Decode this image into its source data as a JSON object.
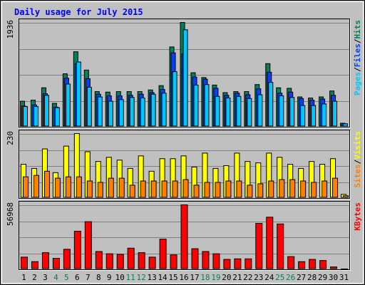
{
  "chart_data": {
    "type": "bar",
    "title": "Daily usage for July 2015",
    "categories": [
      "1",
      "2",
      "3",
      "4",
      "5",
      "6",
      "7",
      "8",
      "9",
      "10",
      "11",
      "12",
      "13",
      "14",
      "15",
      "16",
      "17",
      "18",
      "19",
      "20",
      "21",
      "22",
      "23",
      "24",
      "25",
      "26",
      "27",
      "28",
      "29",
      "30",
      "31"
    ],
    "weekend_days": [
      4,
      5,
      11,
      12,
      18,
      19,
      25,
      26
    ],
    "colors": {
      "background": "#c0c0c0",
      "title": "#0000ff",
      "hits": "#00805c",
      "files": "#0040ff",
      "pages": "#00c8ff",
      "visits": "#ffff00",
      "sites": "#ff8000",
      "kbytes": "#ff0000",
      "weekend_label": "#00805c"
    },
    "panels": [
      {
        "id": "hits",
        "ymax_label": "1936",
        "ymax": 1936,
        "legend": [
          {
            "name": "Pages",
            "color": "#00c8ff"
          },
          {
            "name": "/",
            "color": "#000000"
          },
          {
            "name": "Files",
            "color": "#0040ff"
          },
          {
            "name": "/",
            "color": "#000000"
          },
          {
            "name": "Hits",
            "color": "#00805c"
          }
        ],
        "series": [
          {
            "name": "Hits",
            "color": "#00805c",
            "values": [
              470,
              490,
              720,
              430,
              980,
              1390,
              1050,
              650,
              640,
              650,
              650,
              650,
              680,
              760,
              1480,
              1936,
              1000,
              910,
              770,
              630,
              650,
              650,
              780,
              1170,
              720,
              710,
              550,
              530,
              550,
              660,
              60
            ]
          },
          {
            "name": "Files",
            "color": "#0040ff",
            "values": [
              380,
              400,
              610,
              360,
              900,
              1170,
              890,
              600,
              570,
              570,
              580,
              600,
              630,
              690,
              1370,
              1350,
              920,
              880,
              710,
              580,
              620,
              590,
              700,
              1010,
              620,
              640,
              520,
              490,
              510,
              580,
              50
            ]
          },
          {
            "name": "Pages",
            "color": "#00c8ff",
            "values": [
              370,
              370,
              580,
              350,
              790,
              1200,
              730,
              550,
              470,
              500,
              540,
              530,
              600,
              620,
              1020,
              1800,
              770,
              780,
              560,
              530,
              560,
              520,
              590,
              820,
              570,
              540,
              390,
              390,
              420,
              470,
              50
            ]
          }
        ]
      },
      {
        "id": "visits",
        "ymax_label": "230",
        "ymax": 230,
        "legend": [
          {
            "name": "Sites",
            "color": "#ff8000"
          },
          {
            "name": "/",
            "color": "#000000"
          },
          {
            "name": "Visits",
            "color": "#ffff00"
          }
        ],
        "series": [
          {
            "name": "Visits",
            "color": "#ffff00",
            "values": [
              120,
              105,
              175,
              90,
              185,
              230,
              165,
              130,
              145,
              135,
              105,
              150,
              95,
              140,
              140,
              150,
              110,
              160,
              105,
              115,
              160,
              130,
              125,
              160,
              145,
              120,
              105,
              130,
              120,
              140,
              12
            ]
          },
          {
            "name": "Sites",
            "color": "#ff8000",
            "values": [
              75,
              80,
              95,
              70,
              75,
              75,
              60,
              55,
              70,
              70,
              45,
              60,
              60,
              60,
              60,
              65,
              45,
              55,
              55,
              60,
              60,
              45,
              50,
              60,
              65,
              65,
              60,
              55,
              60,
              70,
              7
            ]
          }
        ]
      },
      {
        "id": "kbytes",
        "ymax_label": "56968",
        "ymax": 56968,
        "legend": [
          {
            "name": "KBytes",
            "color": "#ff0000"
          }
        ],
        "series": [
          {
            "name": "KBytes",
            "color": "#ff0000",
            "values": [
              10500,
              6500,
              14500,
              9500,
              17500,
              33500,
              42000,
              15500,
              13500,
              13000,
              18500,
              14500,
              10500,
              26500,
              12500,
              56968,
              18000,
              15500,
              13500,
              8500,
              9000,
              9000,
              40500,
              46000,
              40000,
              11000,
              6500,
              8500,
              7500,
              1800,
              0
            ]
          }
        ]
      }
    ]
  }
}
